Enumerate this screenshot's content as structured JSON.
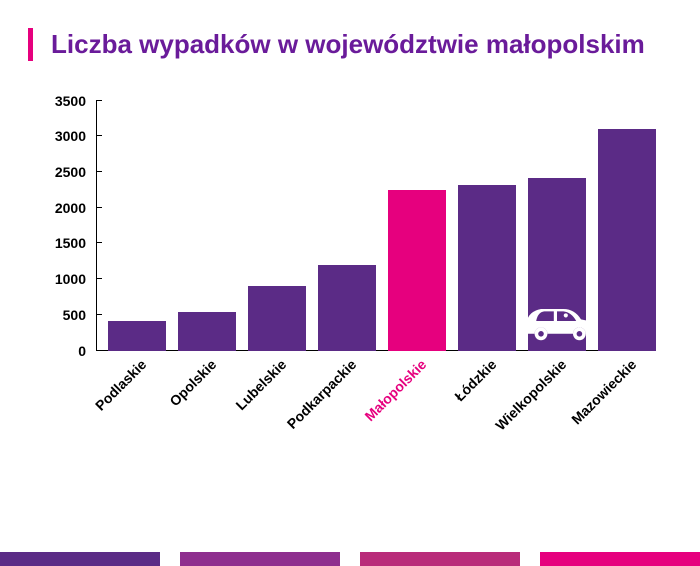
{
  "title": "Liczba wypadków w województwie małopolskim",
  "title_color": "#6a1b9a",
  "title_accent_color": "#e6007e",
  "chart": {
    "type": "bar",
    "ymax": 3500,
    "ytick_step": 500,
    "yticks": [
      0,
      500,
      1000,
      1500,
      2000,
      2500,
      3000,
      3500
    ],
    "tick_fontsize": 14,
    "xlabel_fontsize": 14,
    "primary_bar_color": "#5b2b86",
    "highlight_bar_color": "#e6007e",
    "highlight_label_color": "#e6007e",
    "label_color": "#000000",
    "axis_color": "#000000",
    "data": [
      {
        "label": "Podlaskie",
        "value": 420,
        "highlight": false
      },
      {
        "label": "Opolskie",
        "value": 540,
        "highlight": false
      },
      {
        "label": "Lubelskie",
        "value": 900,
        "highlight": false
      },
      {
        "label": "Podkarpackie",
        "value": 1200,
        "highlight": false
      },
      {
        "label": "Małopolskie",
        "value": 2250,
        "highlight": true
      },
      {
        "label": "Łódzkie",
        "value": 2320,
        "highlight": false
      },
      {
        "label": "Wielkopolskie",
        "value": 2420,
        "highlight": false
      },
      {
        "label": "Mazowieckie",
        "value": 3100,
        "highlight": false
      }
    ],
    "car_icon_on_index": 6,
    "car_icon_color": "#ffffff"
  },
  "footer_colors": [
    "#5b2b86",
    "#8e2e8e",
    "#b92b7a",
    "#e6007e"
  ]
}
